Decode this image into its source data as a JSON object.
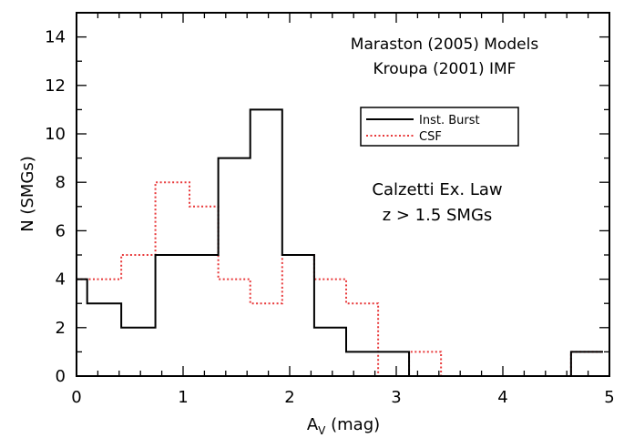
{
  "chart_data": {
    "type": "histogram",
    "xlabel_main": "A",
    "xlabel_sub": "V",
    "xlabel_unit": " (mag)",
    "ylabel": "N (SMGs)",
    "xlim": [
      0,
      5
    ],
    "ylim": [
      0,
      15
    ],
    "x_ticks": [
      0,
      1,
      2,
      3,
      4,
      5
    ],
    "x_tick_labels": [
      "0",
      "1",
      "2",
      "3",
      "4",
      "5"
    ],
    "y_ticks": [
      0,
      2,
      4,
      6,
      8,
      10,
      12,
      14
    ],
    "y_tick_labels": [
      "0",
      "2",
      "4",
      "6",
      "8",
      "10",
      "12",
      "14"
    ],
    "bin_edges": [
      0.0,
      0.1,
      0.42,
      0.74,
      1.06,
      1.33,
      1.63,
      1.93,
      2.23,
      2.53,
      2.83,
      3.12,
      3.42,
      3.72,
      4.04,
      4.34,
      4.64,
      4.94
    ],
    "series": [
      {
        "name": "Inst. Burst",
        "color": "#000000",
        "style": "solid",
        "counts": [
          4,
          3,
          2,
          5,
          5,
          9,
          11,
          5,
          2,
          1,
          1,
          0,
          0,
          0,
          0,
          0,
          1
        ]
      },
      {
        "name": "CSF",
        "color": "#e8393a",
        "style": "dotted",
        "counts": [
          4,
          4,
          5,
          8,
          7,
          4,
          3,
          5,
          4,
          3,
          0,
          1,
          0,
          0,
          0,
          0,
          1
        ]
      }
    ],
    "annotations": {
      "models_line1": "Maraston (2005) Models",
      "models_line2": "Kroupa (2001) IMF",
      "law_line1": "Calzetti Ex. Law",
      "law_line2": "z > 1.5 SMGs"
    },
    "legend_position": "upper-right"
  }
}
